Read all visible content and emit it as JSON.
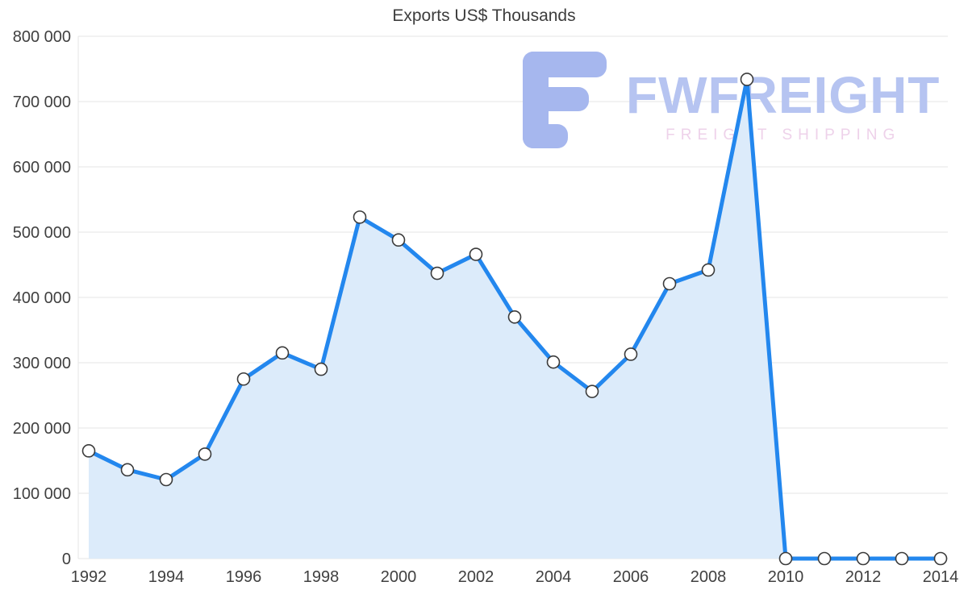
{
  "title": "Exports US$ Thousands",
  "watermark": {
    "brand": "FWFREIGHT",
    "tagline": "FREIGHT SHIPPING",
    "brand_color": "#b6c4f1",
    "tagline_color": "#eed2ea",
    "icon": "fwfreight-logo-icon",
    "icon_color": "#a6b7ee"
  },
  "colors": {
    "line": "#2387ee",
    "area_fill": "#dcebfa",
    "marker_fill": "#ffffff",
    "marker_stroke": "#3b3b3b",
    "grid": "#e6e6e6",
    "axis_text": "#404040"
  },
  "chart_data": {
    "type": "area",
    "title": "Exports US$ Thousands",
    "x": [
      1992,
      1993,
      1994,
      1995,
      1996,
      1997,
      1998,
      1999,
      2000,
      2001,
      2002,
      2003,
      2004,
      2005,
      2006,
      2007,
      2008,
      2009,
      2010,
      2011,
      2012,
      2013,
      2014
    ],
    "values": [
      165000,
      136000,
      121000,
      160000,
      275000,
      315000,
      290000,
      523000,
      488000,
      437000,
      466000,
      370000,
      301000,
      256000,
      313000,
      421000,
      442000,
      734000,
      0,
      0,
      0,
      0,
      0
    ],
    "ylim": [
      0,
      800000
    ],
    "ytick_step": 100000,
    "ytick_labels": [
      "0",
      "100 000",
      "200 000",
      "300 000",
      "400 000",
      "500 000",
      "600 000",
      "700 000",
      "800 000"
    ],
    "xtick_labels": [
      "1992",
      "1994",
      "1996",
      "1998",
      "2000",
      "2002",
      "2004",
      "2006",
      "2008",
      "2010",
      "2012",
      "2014"
    ],
    "grid": "horizontal",
    "legend": "none",
    "marker": "circle",
    "line_width": 5
  }
}
